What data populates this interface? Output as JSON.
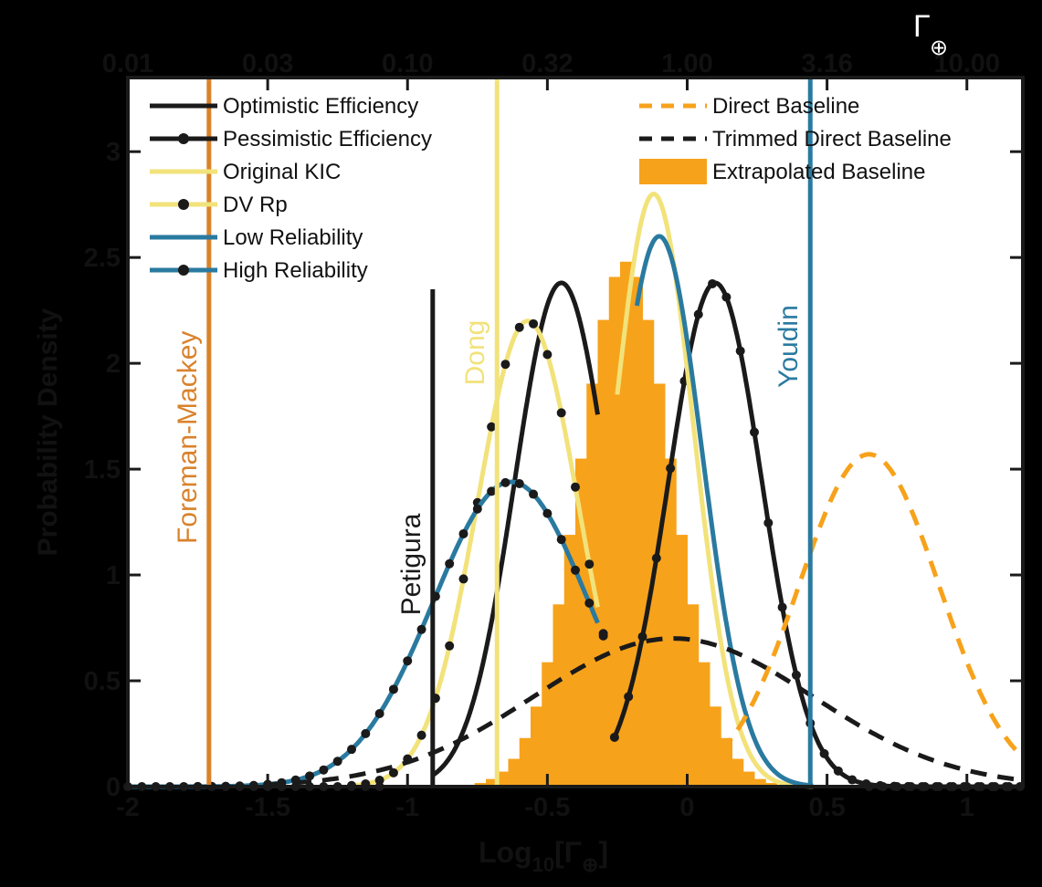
{
  "colors": {
    "background": "#000000",
    "plot_bg": "#ffffff",
    "black": "#1a1a1a",
    "yellow": "#f2e27a",
    "blue": "#2a7aa0",
    "orange": "#f7a21b",
    "orange_line": "#d9822b",
    "axis_text": "#111111"
  },
  "chart_data": {
    "type": "line",
    "xlabel": "Log₁₀[Γ⊕]",
    "xlabel_main": "Log",
    "xlabel_sub": "10",
    "xlabel_bracket_open": "[Γ",
    "xlabel_bracket_sub": "⊕",
    "xlabel_bracket_close": "]",
    "ylabel": "Probability Density",
    "top_axis_label": "Γ",
    "top_axis_label_sub": "⊕",
    "xlim": [
      -2,
      1.2
    ],
    "ylim": [
      0,
      3.35
    ],
    "x_ticks": [
      {
        "value": -2,
        "label": "-2"
      },
      {
        "value": -1.5,
        "label": "-1.5"
      },
      {
        "value": -1,
        "label": "-1"
      },
      {
        "value": -0.5,
        "label": "-0.5"
      },
      {
        "value": 0,
        "label": "0"
      },
      {
        "value": 0.5,
        "label": "0.5"
      },
      {
        "value": 1,
        "label": "1"
      }
    ],
    "y_ticks": [
      {
        "value": 0,
        "label": "0"
      },
      {
        "value": 0.5,
        "label": "0.5"
      },
      {
        "value": 1,
        "label": "1"
      },
      {
        "value": 1.5,
        "label": "1.5"
      },
      {
        "value": 2,
        "label": "2"
      },
      {
        "value": 2.5,
        "label": "2.5"
      },
      {
        "value": 3,
        "label": "3"
      }
    ],
    "top_ticks": [
      {
        "value": -2,
        "label": "0.01"
      },
      {
        "value": -1.5,
        "label": "0.03"
      },
      {
        "value": -1,
        "label": "0.10"
      },
      {
        "value": -0.5,
        "label": "0.32"
      },
      {
        "value": 0,
        "label": "1.00"
      },
      {
        "value": 0.5,
        "label": "3.16"
      },
      {
        "value": 1,
        "label": "10.00"
      }
    ],
    "gaussians": [
      {
        "id": "optimistic",
        "name": "Optimistic Efficiency",
        "color": "black",
        "mu": -0.45,
        "sigma": 0.167,
        "amp": 2.38,
        "markers": false,
        "dash": false,
        "xmin": -0.91,
        "xmax": -0.32
      },
      {
        "id": "pessimistic",
        "name": "Pessimistic Efficiency",
        "color": "black",
        "mu": 0.1,
        "sigma": 0.167,
        "amp": 2.38,
        "markers": true,
        "dash": false,
        "xmin": -0.26,
        "xmax": 1.2
      },
      {
        "id": "original-kic",
        "name": "Original KIC",
        "color": "yellow",
        "mu": -0.12,
        "sigma": 0.143,
        "amp": 2.8,
        "markers": false,
        "dash": false,
        "xmin": -0.25,
        "xmax": 0.45
      },
      {
        "id": "dv-rp",
        "name": "DV Rp",
        "color": "yellow",
        "mu": -0.57,
        "sigma": 0.181,
        "amp": 2.2,
        "markers": true,
        "dash": false,
        "xmin": -1.2,
        "xmax": -0.32
      },
      {
        "id": "low-reliability",
        "name": "Low Reliability",
        "color": "blue",
        "mu": -0.1,
        "sigma": 0.154,
        "amp": 2.6,
        "markers": false,
        "dash": false,
        "xmin": -0.18,
        "xmax": 0.45
      },
      {
        "id": "high-reliability",
        "name": "High Reliability",
        "color": "blue",
        "mu": -0.63,
        "sigma": 0.278,
        "amp": 1.44,
        "markers": true,
        "dash": false,
        "xmin": -2,
        "xmax": -0.32
      },
      {
        "id": "direct-baseline",
        "name": "Direct Baseline",
        "color": "orange",
        "mu": 0.65,
        "sigma": 0.25,
        "amp": 1.57,
        "markers": false,
        "dash": true,
        "xmin": 0.12,
        "xmax": 1.2
      },
      {
        "id": "trimmed-direct",
        "name": "Trimmed Direct Baseline",
        "color": "black",
        "mu": -0.05,
        "sigma": 0.5,
        "amp": 0.7,
        "markers": false,
        "dash": true,
        "xmin": -1.5,
        "xmax": 1.2
      }
    ],
    "histogram": {
      "name": "Extrapolated Baseline",
      "color": "orange",
      "bin_width": 0.04,
      "bins_from": -0.76,
      "bins_to": 0.36,
      "mu": -0.22,
      "sigma": 0.165,
      "amp": 2.48
    },
    "vlines": [
      {
        "id": "foreman-mackey",
        "x": -1.71,
        "ymax": 3.35,
        "color": "orange_line",
        "label": "Foreman-Mackey",
        "label_y": 1.65
      },
      {
        "id": "petigura",
        "x": -0.91,
        "ymax": 2.35,
        "color": "black",
        "label": "Petigura",
        "label_y": 1.05
      },
      {
        "id": "dong",
        "x": -0.68,
        "ymax": 3.35,
        "color": "yellow",
        "label": "Dong",
        "label_y": 2.05
      },
      {
        "id": "youdin",
        "x": 0.44,
        "ymax": 3.35,
        "color": "blue",
        "label": "Youdin",
        "label_y": 2.08
      }
    ],
    "legend_left": [
      {
        "name": "Optimistic Efficiency",
        "color": "black",
        "markers": false
      },
      {
        "name": "Pessimistic Efficiency",
        "color": "black",
        "markers": true
      },
      {
        "name": "Original KIC",
        "color": "yellow",
        "markers": false
      },
      {
        "name": "DV Rp",
        "color": "yellow",
        "markers": true
      },
      {
        "name": "Low Reliability",
        "color": "blue",
        "markers": false
      },
      {
        "name": "High Reliability",
        "color": "blue",
        "markers": true
      }
    ],
    "legend_right": [
      {
        "name": "Direct Baseline",
        "color": "orange",
        "style": "dash"
      },
      {
        "name": "Trimmed Direct Baseline",
        "color": "black",
        "style": "dash"
      },
      {
        "name": "Extrapolated Baseline",
        "color": "orange",
        "style": "patch"
      }
    ]
  }
}
